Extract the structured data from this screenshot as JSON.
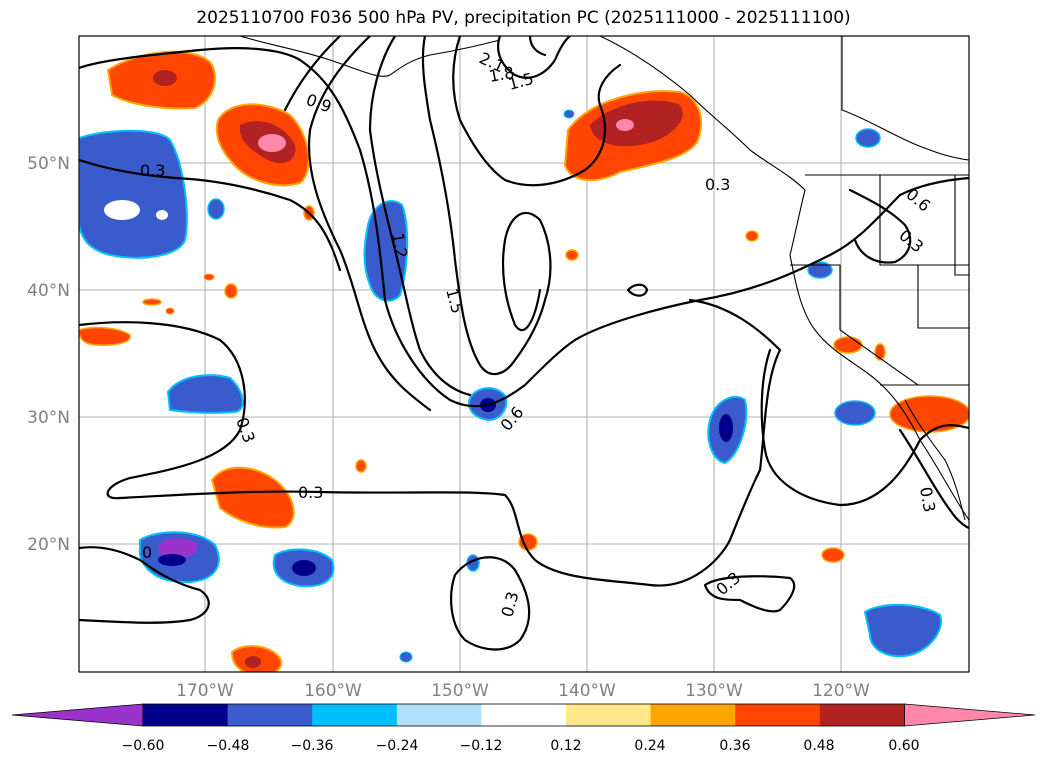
{
  "title": "2025110700 F036 500 hPa PV, precipitation PC (2025111000 - 2025111100)",
  "axes": {
    "lat_labels": [
      "50°N",
      "40°N",
      "30°N",
      "20°N"
    ],
    "lon_labels": [
      "170°W",
      "160°W",
      "150°W",
      "140°W",
      "130°W",
      "120°W"
    ]
  },
  "contour_labels": [
    "2.1",
    "1.8",
    "1.5",
    "0.9",
    "0.3",
    "0.3",
    "0.6",
    "0.3",
    "1.2",
    "1.5",
    "0.6",
    "0.3",
    "0.3",
    "0.3",
    "0.3",
    "0.3",
    "0"
  ],
  "colorbar": {
    "ticks": [
      "−0.60",
      "−0.48",
      "−0.36",
      "−0.24",
      "−0.12",
      "0.12",
      "0.24",
      "0.36",
      "0.48",
      "0.60"
    ],
    "colors": [
      "#9933cc",
      "#00008b",
      "#3a5bcc",
      "#00bfff",
      "#b0e0fa",
      "#ffffff",
      "#ffe88c",
      "#ffa500",
      "#ff4500",
      "#b22222",
      "#ff88aa"
    ]
  }
}
